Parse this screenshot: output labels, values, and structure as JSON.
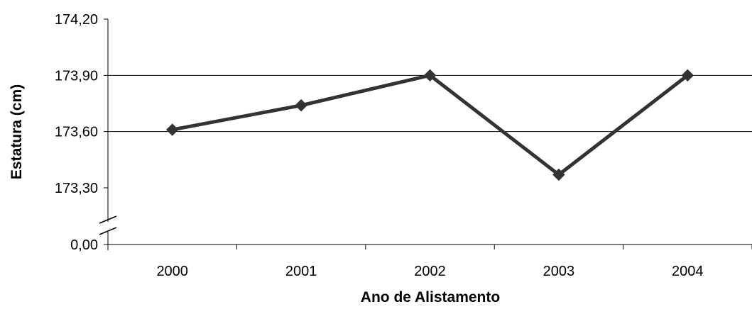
{
  "chart_data": {
    "type": "line",
    "xlabel": "Ano de Alistamento",
    "ylabel": "Estatura (cm)",
    "categories": [
      "2000",
      "2001",
      "2002",
      "2003",
      "2004"
    ],
    "series": [
      {
        "values": [
          173.61,
          173.74,
          173.9,
          173.37,
          173.9
        ]
      }
    ],
    "y_ticks": [
      {
        "label": "174,20",
        "value": 174.2
      },
      {
        "label": "173,90",
        "value": 173.9
      },
      {
        "label": "173,60",
        "value": 173.6
      },
      {
        "label": "173,30",
        "value": 173.3
      },
      {
        "label": "0,00",
        "value": 0.0
      }
    ],
    "ylim": [
      173.3,
      174.2
    ],
    "axis_break": true,
    "grid": true,
    "line_color": "#333333"
  }
}
